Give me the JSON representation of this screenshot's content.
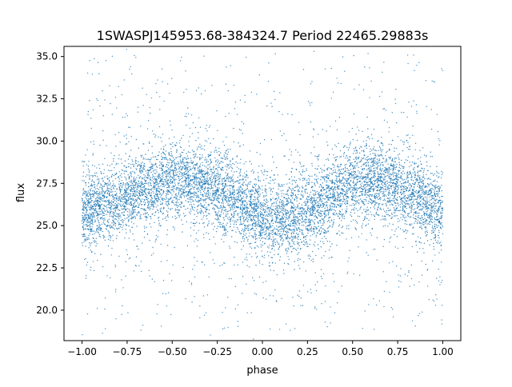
{
  "chart_data": {
    "type": "scatter",
    "title": "1SWASPJ145953.68-384324.7 Period 22465.29883s",
    "xlabel": "phase",
    "ylabel": "flux",
    "xlim": [
      -1.1,
      1.1
    ],
    "ylim": [
      18.2,
      35.6
    ],
    "x_ticks": [
      -1.0,
      -0.75,
      -0.5,
      -0.25,
      0.0,
      0.25,
      0.5,
      0.75,
      1.0
    ],
    "x_tick_labels": [
      "−1.00",
      "−0.75",
      "−0.50",
      "−0.25",
      "0.00",
      "0.25",
      "0.50",
      "0.75",
      "1.00"
    ],
    "y_ticks": [
      20.0,
      22.5,
      25.0,
      27.5,
      30.0,
      32.5,
      35.0
    ],
    "y_tick_labels": [
      "20.0",
      "22.5",
      "25.0",
      "27.5",
      "30.0",
      "32.5",
      "35.0"
    ],
    "grid": false,
    "legend": "none",
    "marker_color": "#1f77b4",
    "series": [
      {
        "x_range": [
          -1.0,
          1.0
        ],
        "model": "double-humped light curve folded over two cycles",
        "mean_flux": 26.4,
        "amplitude": 1.3,
        "maxima_phase": [
          -0.45,
          0.55
        ],
        "minima_phase": [
          -0.95,
          0.05
        ],
        "core_spread": 2.0,
        "outlier_range": [
          18.5,
          35.2
        ],
        "x": [
          -1.0,
          -0.9,
          -0.8,
          -0.7,
          -0.6,
          -0.5,
          -0.4,
          -0.3,
          -0.2,
          -0.1,
          0.0,
          0.1,
          0.2,
          0.3,
          0.4,
          0.5,
          0.6,
          0.7,
          0.8,
          0.9,
          1.0
        ],
        "y_center": [
          25.8,
          26.1,
          26.5,
          27.0,
          27.4,
          27.6,
          27.5,
          27.2,
          26.7,
          26.1,
          25.5,
          25.3,
          25.6,
          26.2,
          26.9,
          27.5,
          27.7,
          27.5,
          27.0,
          26.4,
          25.8
        ]
      }
    ]
  }
}
